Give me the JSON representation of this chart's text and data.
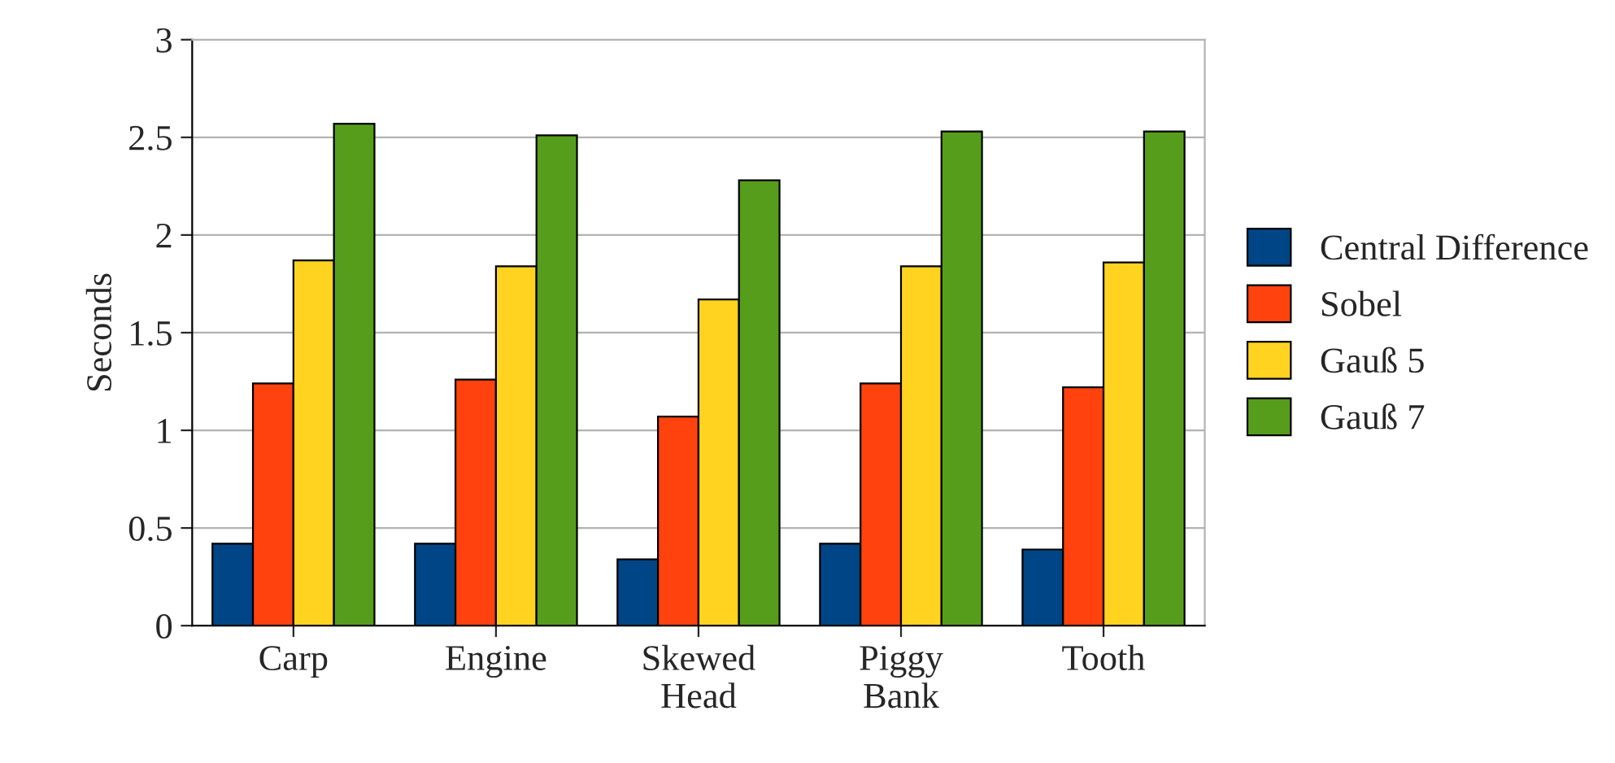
{
  "chart_data": {
    "type": "bar",
    "ylabel": "Seconds",
    "categories": [
      "Carp",
      "Engine",
      "Skewed Head",
      "Piggy Bank",
      "Tooth"
    ],
    "series": [
      {
        "name": "Central Difference",
        "color": "#004586",
        "values": [
          0.42,
          0.42,
          0.34,
          0.42,
          0.39
        ]
      },
      {
        "name": "Sobel",
        "color": "#ff420e",
        "values": [
          1.24,
          1.26,
          1.07,
          1.24,
          1.22
        ]
      },
      {
        "name": "Gauß 5",
        "color": "#ffd320",
        "values": [
          1.87,
          1.84,
          1.67,
          1.84,
          1.86
        ]
      },
      {
        "name": "Gauß 7",
        "color": "#579d1c",
        "values": [
          2.57,
          2.51,
          2.28,
          2.53,
          2.53
        ]
      }
    ],
    "ylim": [
      0,
      3
    ],
    "yticks": [
      0,
      0.5,
      1,
      1.5,
      2,
      2.5,
      3
    ],
    "grid": "y",
    "legend": "right"
  }
}
